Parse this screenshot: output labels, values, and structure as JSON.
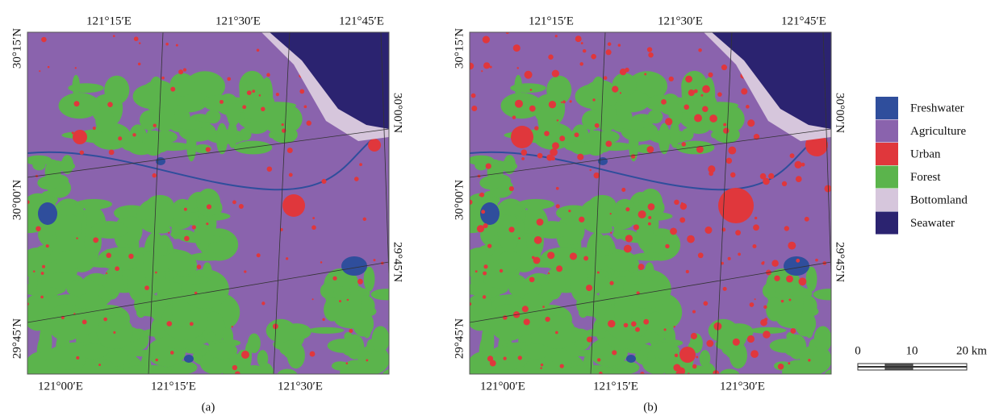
{
  "panels": [
    {
      "caption": "(a)",
      "top_labels": [
        "121°15′E",
        "121°30′E",
        "121°45′E"
      ],
      "bottom_labels": [
        "121°00′E",
        "121°15′E",
        "121°30′E"
      ],
      "left_labels": [
        "30°15′N",
        "30°00′N",
        "29°45′N"
      ],
      "right_labels": [
        "30°00′N",
        "29°45′N"
      ]
    },
    {
      "caption": "(b)",
      "top_labels": [
        "121°15′E",
        "121°30′E",
        "121°45′E"
      ],
      "bottom_labels": [
        "121°00′E",
        "121°15′E",
        "121°30′E"
      ],
      "left_labels": [
        "30°15′N",
        "30°00′N",
        "29°45′N"
      ],
      "right_labels": [
        "30°00′N",
        "29°45′N"
      ]
    }
  ],
  "legend": [
    {
      "label": "Freshwater",
      "color": "#2f4e9c"
    },
    {
      "label": "Agriculture",
      "color": "#8a63ad"
    },
    {
      "label": "Urban",
      "color": "#e0373c"
    },
    {
      "label": "Forest",
      "color": "#5bb44c"
    },
    {
      "label": "Bottomland",
      "color": "#d6c6dc"
    },
    {
      "label": "Seawater",
      "color": "#2b2370"
    }
  ],
  "scale_bar": {
    "labels": [
      "0",
      "10",
      "20 km"
    ]
  }
}
